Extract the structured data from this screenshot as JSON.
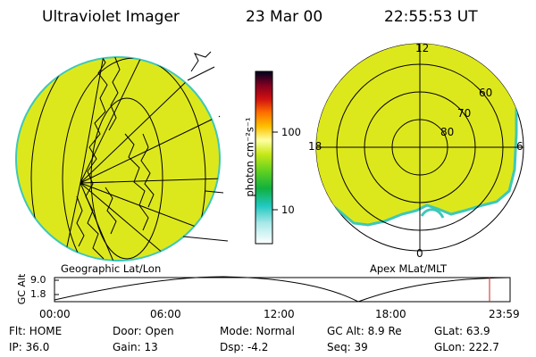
{
  "header": {
    "instrument": "Ultraviolet Imager",
    "date": "23 Mar 00",
    "time": "22:55:53 UT"
  },
  "left_panel": {
    "caption": "Geographic Lat/Lon"
  },
  "right_panel": {
    "caption": "Apex MLat/MLT",
    "mlt_labels": [
      "12",
      "18",
      "6",
      "0"
    ],
    "lat_labels": [
      "60",
      "70",
      "80"
    ]
  },
  "colorbar": {
    "unit_label": "photon cm⁻²s⁻¹",
    "ticks": [
      "100",
      "10"
    ],
    "scale": "log"
  },
  "altitude_plot": {
    "ylabel": "GC Alt",
    "yticks": [
      "9.0",
      "1.8"
    ],
    "xticks": [
      "00:00",
      "06:00",
      "12:00",
      "18:00",
      "23:59"
    ],
    "marker_color": "#cc2222"
  },
  "info": {
    "flt": "Flt: HOME",
    "door": "Door: Open",
    "mode": "Mode: Normal",
    "gc_alt": "GC Alt: 8.9 Re",
    "glat": "GLat:  63.9",
    "ip": "IP: 36.0",
    "gain": "Gain: 13",
    "dsp": "Dsp:    -4.2",
    "seq": "Seq: 39",
    "glon": "GLon: 222.7"
  },
  "colors": {
    "disk_fill": "#dde81c",
    "disk_edge": "#3ec8b8",
    "background": "#ffffff",
    "grid": "#000000"
  }
}
